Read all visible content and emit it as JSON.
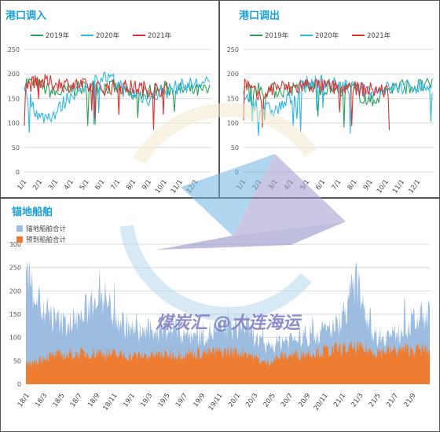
{
  "chart_data": [
    {
      "type": "line",
      "title": "港口调入",
      "x": [
        "1/1",
        "2/1",
        "3/1",
        "4/1",
        "5/1",
        "6/1",
        "7/1",
        "8/1",
        "9/1",
        "10/1",
        "11/1",
        "12/1"
      ],
      "ylim": [
        0,
        250
      ],
      "yticks": [
        "0",
        "50",
        "100",
        "150",
        "200",
        "250"
      ],
      "grid": true,
      "legend": "top",
      "series": [
        {
          "name": "2019年",
          "color": "#2ca05a",
          "points": [
            [
              0,
              185
            ],
            [
              1,
              176
            ],
            [
              2,
              160
            ],
            [
              3,
              168
            ],
            [
              4,
              172
            ],
            [
              5,
              175
            ],
            [
              6,
              170
            ],
            [
              7,
              150
            ],
            [
              8,
              165
            ],
            [
              9,
              170
            ],
            [
              10,
              168
            ],
            [
              11,
              165
            ]
          ]
        },
        {
          "name": "2020年",
          "color": "#2fb7e6",
          "points": [
            [
              0,
              170
            ],
            [
              1,
              110
            ],
            [
              2,
              120
            ],
            [
              3,
              160
            ],
            [
              4,
              175
            ],
            [
              5,
              195
            ],
            [
              6,
              180
            ],
            [
              7,
              160
            ],
            [
              8,
              150
            ],
            [
              9,
              165
            ],
            [
              10,
              175
            ],
            [
              11,
              180
            ]
          ]
        },
        {
          "name": "2021年",
          "color": "#e03030",
          "points": [
            [
              0,
              175
            ],
            [
              1,
              185
            ],
            [
              2,
              180
            ],
            [
              3,
              178
            ],
            [
              4,
              175
            ],
            [
              5,
              170
            ],
            [
              6,
              175
            ],
            [
              7,
              172
            ],
            [
              8,
              170
            ],
            [
              9,
              168
            ]
          ]
        }
      ]
    },
    {
      "type": "line",
      "title": "港口调出",
      "x": [
        "1/1",
        "2/1",
        "3/1",
        "4/1",
        "5/1",
        "6/1",
        "7/1",
        "8/1",
        "9/1",
        "10/1",
        "11/1",
        "12/1"
      ],
      "ylim": [
        0,
        250
      ],
      "yticks": [
        "0",
        "50",
        "100",
        "150",
        "200",
        "250"
      ],
      "grid": true,
      "legend": "top",
      "series": [
        {
          "name": "2019年",
          "color": "#2ca05a",
          "points": [
            [
              0,
              175
            ],
            [
              1,
              170
            ],
            [
              2,
              165
            ],
            [
              3,
              170
            ],
            [
              4,
              175
            ],
            [
              5,
              172
            ],
            [
              6,
              170
            ],
            [
              7,
              168
            ],
            [
              8,
              140
            ],
            [
              9,
              170
            ],
            [
              10,
              175
            ],
            [
              11,
              175
            ]
          ]
        },
        {
          "name": "2020年",
          "color": "#2fb7e6",
          "points": [
            [
              0,
              160
            ],
            [
              1,
              130
            ],
            [
              2,
              125
            ],
            [
              3,
              150
            ],
            [
              4,
              180
            ],
            [
              5,
              185
            ],
            [
              6,
              175
            ],
            [
              7,
              170
            ],
            [
              8,
              165
            ],
            [
              9,
              170
            ],
            [
              10,
              172
            ],
            [
              11,
              175
            ]
          ]
        },
        {
          "name": "2021年",
          "color": "#e03030",
          "points": [
            [
              0,
              185
            ],
            [
              1,
              150
            ],
            [
              2,
              175
            ],
            [
              3,
              170
            ],
            [
              4,
              178
            ],
            [
              5,
              175
            ],
            [
              6,
              172
            ],
            [
              7,
              170
            ],
            [
              8,
              168
            ],
            [
              9,
              165
            ]
          ]
        }
      ]
    },
    {
      "type": "area",
      "title": "锚地船舶",
      "x": [
        "18/1",
        "18/3",
        "18/5",
        "18/7",
        "18/9",
        "18/11",
        "19/1",
        "19/3",
        "19/5",
        "19/7",
        "19/9",
        "19/11",
        "20/1",
        "20/3",
        "20/5",
        "20/7",
        "20/9",
        "20/11",
        "21/1",
        "21/3",
        "21/5",
        "21/7",
        "21/9"
      ],
      "ylim": [
        0,
        300
      ],
      "yticks": [
        "0",
        "50",
        "100",
        "150",
        "200",
        "250",
        "300"
      ],
      "grid": true,
      "legend": "top-left",
      "series": [
        {
          "name": "锚地船舶合计",
          "color": "#9dbde0",
          "values": [
            240,
            150,
            130,
            140,
            205,
            140,
            110,
            115,
            120,
            105,
            110,
            120,
            125,
            75,
            95,
            100,
            110,
            125,
            220,
            105,
            105,
            130,
            155
          ]
        },
        {
          "name": "预到船舶合计",
          "color": "#ee7d32",
          "values": [
            40,
            58,
            62,
            65,
            68,
            62,
            60,
            62,
            64,
            66,
            68,
            70,
            68,
            45,
            60,
            65,
            70,
            75,
            78,
            70,
            72,
            75,
            72
          ]
        }
      ]
    }
  ],
  "watermark": "煤炭汇 @大连海运",
  "colors": {
    "title": "#1aa0d8",
    "grid": "#d9d9d9"
  }
}
